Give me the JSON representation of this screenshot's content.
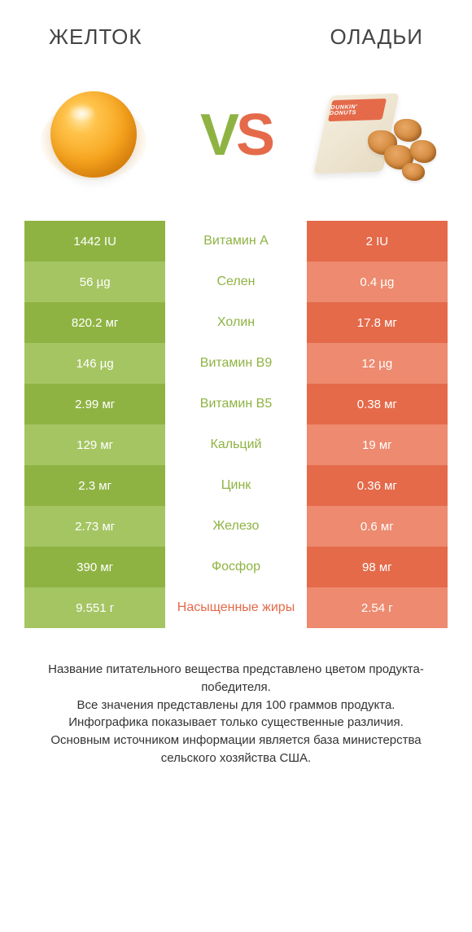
{
  "header": {
    "left_title": "ЖЕЛТОК",
    "right_title": "ОЛАДЬИ",
    "vs_v": "V",
    "vs_s": "S",
    "bag_brand": "DUNKIN' DONUTS"
  },
  "colors": {
    "green_dark": "#8fb343",
    "green_light": "#a5c563",
    "orange_dark": "#e46a4a",
    "orange_light": "#ed8a6f",
    "text_white": "#ffffff",
    "bg": "#ffffff"
  },
  "rows": [
    {
      "left": "1442 IU",
      "label": "Витамин A",
      "right": "2 IU",
      "winner": "left"
    },
    {
      "left": "56 µg",
      "label": "Селен",
      "right": "0.4 µg",
      "winner": "left"
    },
    {
      "left": "820.2 мг",
      "label": "Холин",
      "right": "17.8 мг",
      "winner": "left"
    },
    {
      "left": "146 µg",
      "label": "Витамин B9",
      "right": "12 µg",
      "winner": "left"
    },
    {
      "left": "2.99 мг",
      "label": "Витамин B5",
      "right": "0.38 мг",
      "winner": "left"
    },
    {
      "left": "129 мг",
      "label": "Кальций",
      "right": "19 мг",
      "winner": "left"
    },
    {
      "left": "2.3 мг",
      "label": "Цинк",
      "right": "0.36 мг",
      "winner": "left"
    },
    {
      "left": "2.73 мг",
      "label": "Железо",
      "right": "0.6 мг",
      "winner": "left"
    },
    {
      "left": "390 мг",
      "label": "Фосфор",
      "right": "98 мг",
      "winner": "left"
    },
    {
      "left": "9.551 г",
      "label": "Насыщенные жиры",
      "right": "2.54 г",
      "winner": "right"
    }
  ],
  "footer": {
    "line1": "Название питательного вещества представлено цветом продукта-победителя.",
    "line2": "Все значения представлены для 100 граммов продукта.",
    "line3": "Инфографика показывает только существенные различия.",
    "line4": "Основным источником информации является база министерства сельского хозяйства США."
  }
}
